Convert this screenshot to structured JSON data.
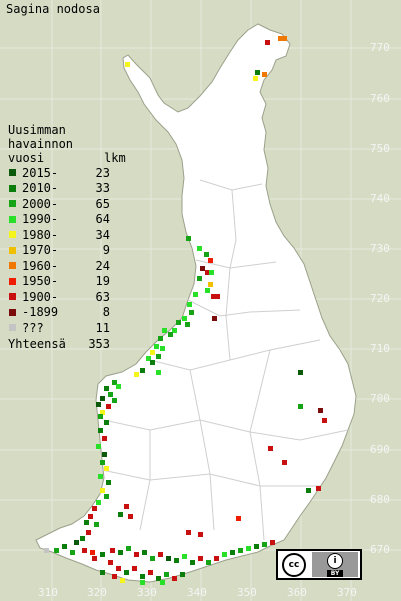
{
  "title": "Sagina nodosa",
  "legend": {
    "heading": [
      "Uusimman",
      "havainnon",
      "vuosi"
    ],
    "count_header": "lkm",
    "rows": [
      {
        "label": "2015-",
        "count": "23",
        "color": "#0a5a0a"
      },
      {
        "label": "2010-",
        "count": "33",
        "color": "#0b7d0b"
      },
      {
        "label": "2000-",
        "count": "65",
        "color": "#16a316"
      },
      {
        "label": "1990-",
        "count": "64",
        "color": "#28e028"
      },
      {
        "label": "1980-",
        "count": "34",
        "color": "#f5f51c"
      },
      {
        "label": "1970-",
        "count": "9",
        "color": "#f0c000"
      },
      {
        "label": "1960-",
        "count": "24",
        "color": "#f07800"
      },
      {
        "label": "1950-",
        "count": "19",
        "color": "#f01c00"
      },
      {
        "label": "1900-",
        "count": "63",
        "color": "#c81010"
      },
      {
        "label": "-1899",
        "count": "8",
        "color": "#7a0c0c"
      },
      {
        "label": "???",
        "count": "11",
        "color": "#c4c4c4"
      }
    ],
    "total_label": "Yhteensä",
    "total_count": "353"
  },
  "grid": {
    "y_ticks": [
      "770",
      "760",
      "750",
      "740",
      "730",
      "720",
      "710",
      "700",
      "690",
      "680",
      "670"
    ],
    "x_ticks": [
      "310",
      "320",
      "330",
      "340",
      "350",
      "360",
      "370"
    ]
  },
  "license": {
    "cc": "cc",
    "by": "BY"
  },
  "colors": {
    "background": "#d6dcc4",
    "land": "#ffffff",
    "borders": "#cccccc"
  }
}
